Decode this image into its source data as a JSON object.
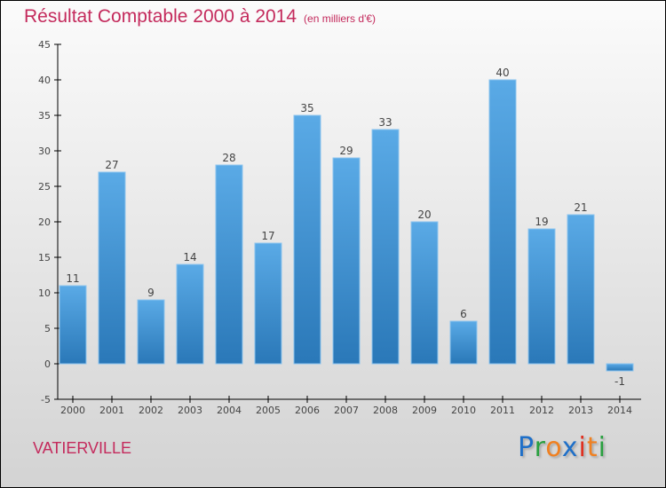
{
  "chart_data": {
    "type": "bar",
    "title": "Résultat Comptable 2000 à 2014",
    "subtitle": "(en milliers d'€)",
    "categories": [
      "2000",
      "2001",
      "2002",
      "2003",
      "2004",
      "2005",
      "2006",
      "2007",
      "2008",
      "2009",
      "2010",
      "2011",
      "2012",
      "2013",
      "2014"
    ],
    "values": [
      11,
      27,
      9,
      14,
      28,
      17,
      35,
      29,
      33,
      20,
      6,
      40,
      19,
      21,
      -1
    ],
    "ylim": [
      -5,
      45
    ],
    "yticks": [
      -5,
      0,
      5,
      10,
      15,
      20,
      25,
      30,
      35,
      40,
      45
    ],
    "xlabel": "",
    "ylabel": "",
    "colors": {
      "bar_top": "#5aaae6",
      "bar_bottom": "#2a78b8"
    }
  },
  "place": "VATIERVILLE",
  "logo": {
    "letters": [
      "P",
      "r",
      "o",
      "x",
      "i",
      "t",
      "i"
    ],
    "colors": [
      "#1e6fc8",
      "#2aa040",
      "#f08020",
      "#1e6fc8",
      "#e03020",
      "#f08020",
      "#2aa040"
    ]
  }
}
